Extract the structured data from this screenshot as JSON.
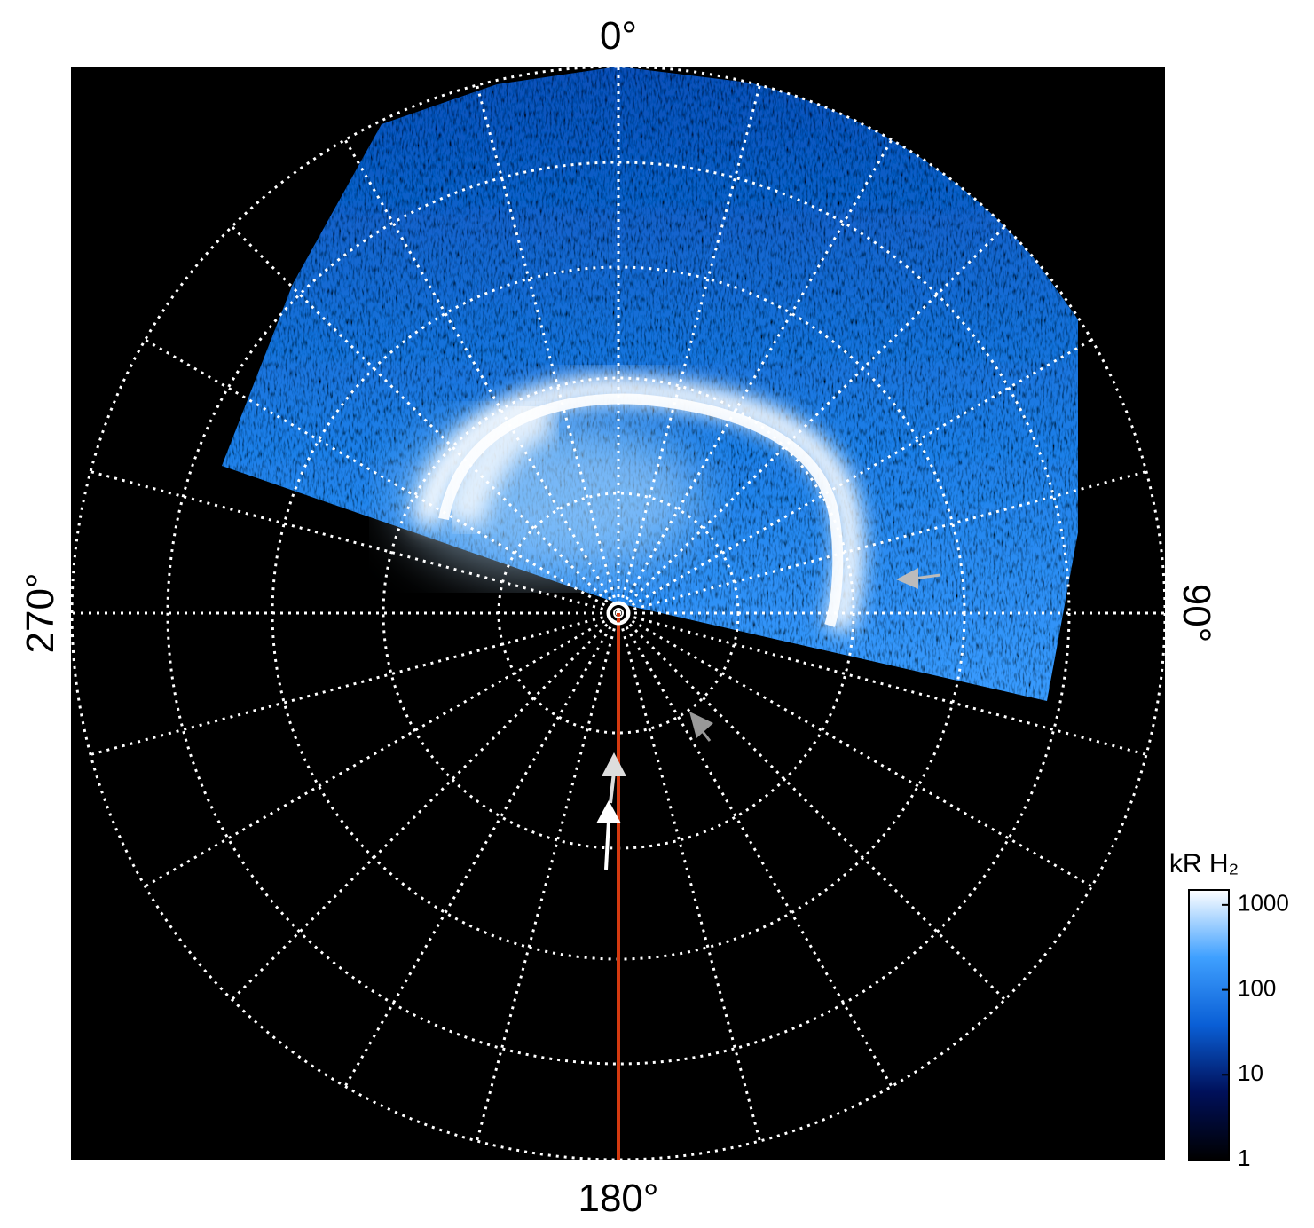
{
  "chart_data": {
    "type": "polar-image",
    "labels": {
      "top": "0°",
      "right": "90°",
      "bottom": "180°",
      "left": "270°"
    },
    "colorbar": {
      "title": "kR H₂",
      "lim": [
        1,
        1500
      ],
      "ticks": [
        1,
        10,
        100,
        1000
      ],
      "log": true,
      "colors": [
        "#000000",
        "#00105a",
        "#0a5fd6",
        "#3fa0ff",
        "#ffffff"
      ]
    }
  }
}
